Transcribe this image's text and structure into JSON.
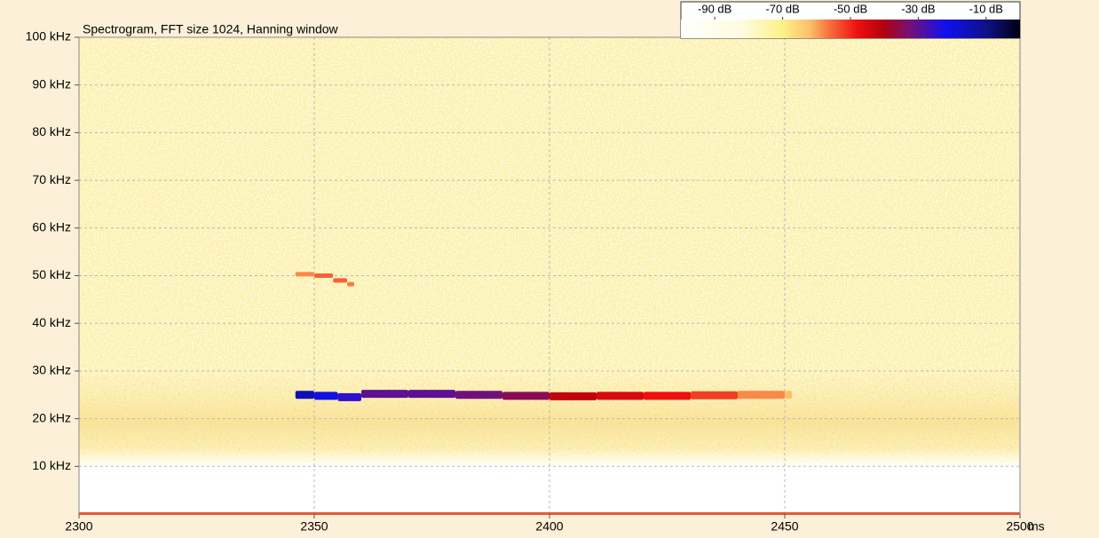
{
  "chart_data": {
    "type": "spectrogram",
    "title": "Spectrogram, FFT size 1024, Hanning window",
    "x_unit": "ms",
    "xlim": [
      2300,
      2500
    ],
    "xticks": [
      2300,
      2350,
      2400,
      2450,
      2500
    ],
    "ylim": [
      0,
      100
    ],
    "yticks": [
      {
        "value": 10,
        "label": "10 kHz"
      },
      {
        "value": 20,
        "label": "20 kHz"
      },
      {
        "value": 30,
        "label": "30 kHz"
      },
      {
        "value": 40,
        "label": "40 kHz"
      },
      {
        "value": 50,
        "label": "50 kHz"
      },
      {
        "value": 60,
        "label": "60 kHz"
      },
      {
        "value": 70,
        "label": "70 kHz"
      },
      {
        "value": 80,
        "label": "80 kHz"
      },
      {
        "value": 90,
        "label": "90 kHz"
      },
      {
        "value": 100,
        "label": "100 kHz"
      }
    ],
    "grid": true,
    "clim": [
      -100,
      0
    ],
    "cticks": [
      {
        "value": -90,
        "label": "-90 dB"
      },
      {
        "value": -70,
        "label": "-70 dB"
      },
      {
        "value": -50,
        "label": "-50 dB"
      },
      {
        "value": -30,
        "label": "-30 dB"
      },
      {
        "value": -10,
        "label": "-10 dB"
      }
    ],
    "traces": [
      {
        "x": [
          2346,
          2350,
          2355,
          2360,
          2370,
          2380,
          2390,
          2400,
          2410,
          2420,
          2430,
          2440,
          2450
        ],
        "y": [
          25,
          24.8,
          24.5,
          25.2,
          25.2,
          25,
          24.8,
          24.7,
          24.8,
          24.8,
          24.9,
          25,
          25
        ],
        "level": [
          -15,
          -20,
          -25,
          -30,
          -30,
          -32,
          -35,
          -42,
          -45,
          -48,
          -52,
          -58,
          -62
        ]
      },
      {
        "x": [
          2346,
          2350,
          2354,
          2357
        ],
        "y": [
          50.3,
          50,
          49,
          48.2
        ],
        "level": [
          -58,
          -55,
          -55,
          -57
        ]
      }
    ]
  }
}
